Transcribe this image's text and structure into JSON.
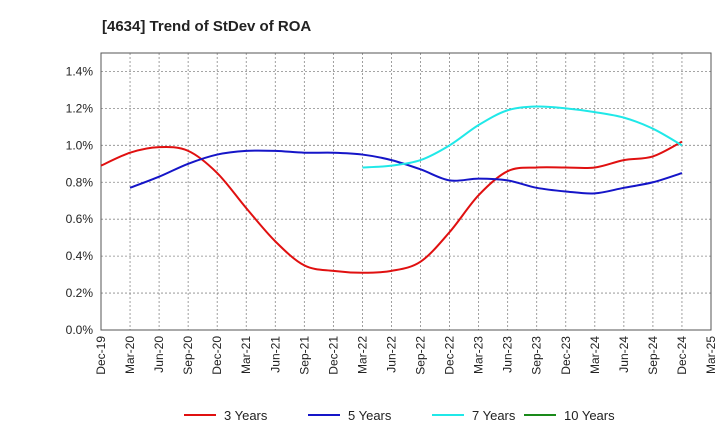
{
  "chart_data": {
    "type": "line",
    "title": "[4634]  Trend of StDev of ROA",
    "xlabel": "",
    "ylabel": "",
    "ylim": [
      0,
      0.015
    ],
    "yticks": [
      0,
      0.002,
      0.004,
      0.006,
      0.008,
      0.01,
      0.012,
      0.014
    ],
    "ytick_labels": [
      "0.0%",
      "0.2%",
      "0.4%",
      "0.6%",
      "0.8%",
      "1.0%",
      "1.2%",
      "1.4%"
    ],
    "x_categories": [
      "Dec-19",
      "Mar-20",
      "Jun-20",
      "Sep-20",
      "Dec-20",
      "Mar-21",
      "Jun-21",
      "Sep-21",
      "Dec-21",
      "Mar-22",
      "Jun-22",
      "Sep-22",
      "Dec-22",
      "Mar-23",
      "Jun-23",
      "Sep-23",
      "Dec-23",
      "Mar-24",
      "Jun-24",
      "Sep-24",
      "Dec-24",
      "Mar-25"
    ],
    "grid": true,
    "legend_position": "bottom",
    "series": [
      {
        "name": "3 Years",
        "color": "#e01010",
        "values": [
          0.0089,
          0.0096,
          0.0099,
          0.0097,
          0.0085,
          0.0066,
          0.0048,
          0.0035,
          0.0032,
          0.0031,
          0.0032,
          0.0037,
          0.0053,
          0.0073,
          0.0086,
          0.0088,
          0.0088,
          0.0088,
          0.0092,
          0.0094,
          0.0102,
          null
        ]
      },
      {
        "name": "5 Years",
        "color": "#1515c8",
        "values": [
          null,
          0.0077,
          0.0083,
          0.009,
          0.0095,
          0.0097,
          0.0097,
          0.0096,
          0.0096,
          0.0095,
          0.0092,
          0.0087,
          0.0081,
          0.0082,
          0.0081,
          0.0077,
          0.0075,
          0.0074,
          0.0077,
          0.008,
          0.0085,
          null
        ]
      },
      {
        "name": "7 Years",
        "color": "#20e8e8",
        "values": [
          null,
          null,
          null,
          null,
          null,
          null,
          null,
          null,
          null,
          0.0088,
          0.0089,
          0.0092,
          0.01,
          0.0111,
          0.0119,
          0.0121,
          0.012,
          0.0118,
          0.0115,
          0.0109,
          0.01,
          null
        ]
      },
      {
        "name": "10 Years",
        "color": "#1a8a1a",
        "values": [
          null,
          null,
          null,
          null,
          null,
          null,
          null,
          null,
          null,
          null,
          null,
          null,
          null,
          null,
          null,
          null,
          null,
          null,
          null,
          null,
          null,
          null
        ]
      }
    ]
  }
}
